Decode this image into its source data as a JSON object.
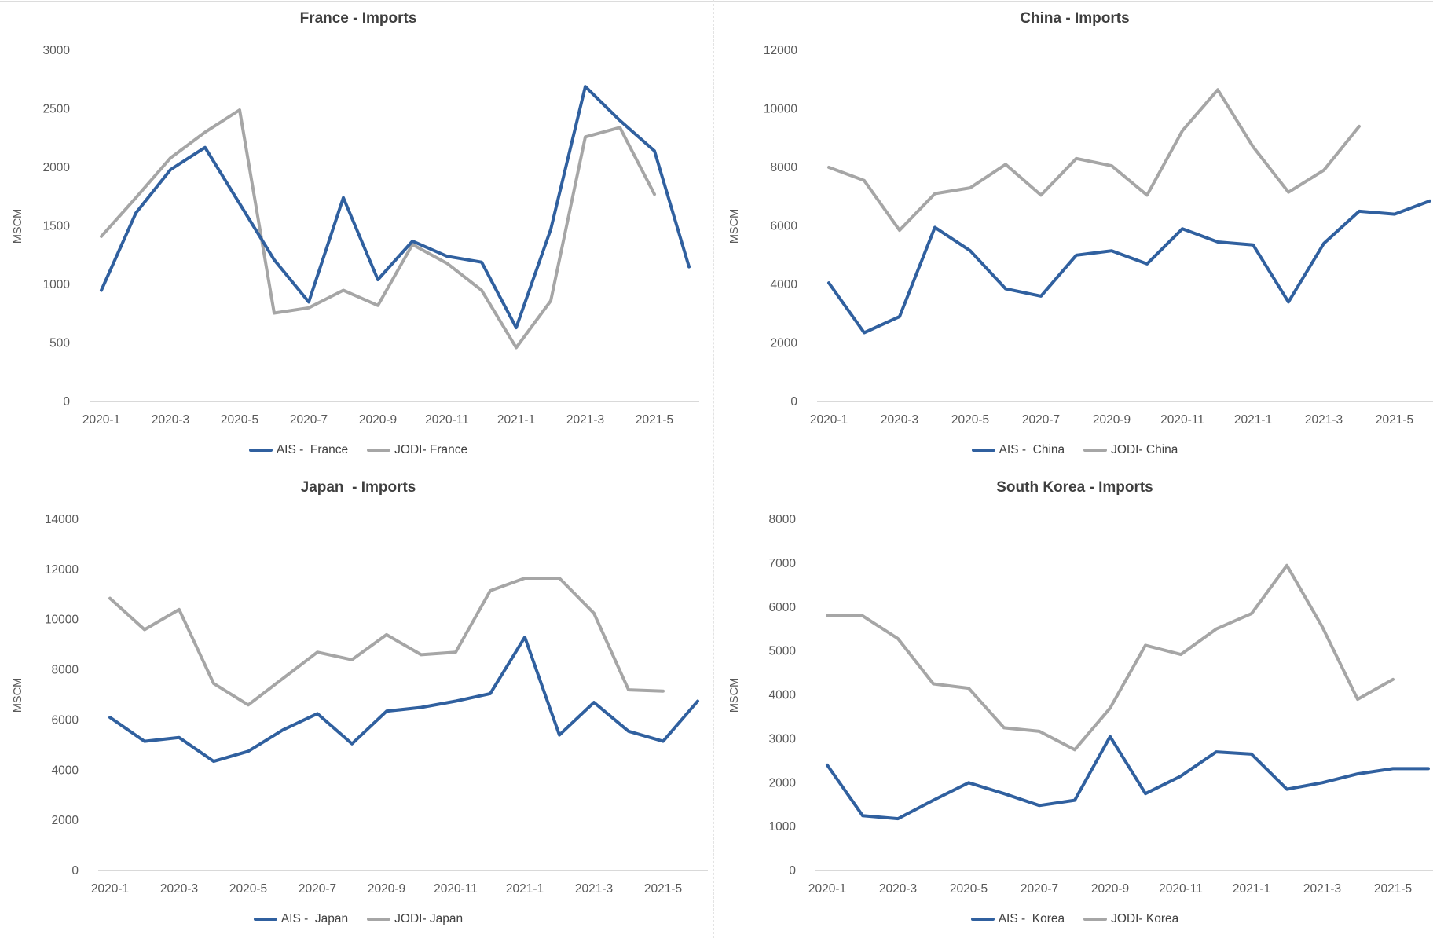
{
  "page": {
    "background": "#FFFFFF"
  },
  "style": {
    "ais_color": "#30609F",
    "jodi_color": "#A6A6A6",
    "axis_color": "#D9D9D9",
    "tick_color": "#595959",
    "title_color": "#3F3F3F",
    "line_width": 4
  },
  "months": [
    "2020-1",
    "2020-2",
    "2020-3",
    "2020-4",
    "2020-5",
    "2020-6",
    "2020-7",
    "2020-8",
    "2020-9",
    "2020-10",
    "2020-11",
    "2020-12",
    "2021-1",
    "2021-2",
    "2021-3",
    "2021-4",
    "2021-5",
    "2021-6"
  ],
  "chart_data": [
    {
      "id": "france",
      "type": "line",
      "title": "France - Imports",
      "ylabel": "MSCM",
      "ylim": [
        0,
        3000
      ],
      "yticks": [
        0,
        500,
        1000,
        1500,
        2000,
        2500,
        3000
      ],
      "xticks_shown": [
        "2020-1",
        "2020-3",
        "2020-5",
        "2020-7",
        "2020-9",
        "2020-11",
        "2021-1",
        "2021-3",
        "2021-5"
      ],
      "grid": false,
      "legend_position": "bottom",
      "series": [
        {
          "name": "AIS -  France",
          "color_key": "ais_color",
          "values": [
            950,
            1610,
            1980,
            2170,
            1690,
            1210,
            850,
            1740,
            1040,
            1370,
            1240,
            1190,
            630,
            1470,
            2690,
            2400,
            2140,
            1150
          ]
        },
        {
          "name": "JODI- France",
          "color_key": "jodi_color",
          "values": [
            1410,
            1740,
            2080,
            2300,
            2490,
            755,
            800,
            950,
            820,
            1340,
            1180,
            950,
            460,
            860,
            2260,
            2340,
            1770
          ]
        }
      ]
    },
    {
      "id": "china",
      "type": "line",
      "title": "China - Imports",
      "ylabel": "MSCM",
      "ylim": [
        0,
        12000
      ],
      "yticks": [
        0,
        2000,
        4000,
        6000,
        8000,
        10000,
        12000
      ],
      "xticks_shown": [
        "2020-1",
        "2020-3",
        "2020-5",
        "2020-7",
        "2020-9",
        "2020-11",
        "2021-1",
        "2021-3",
        "2021-5"
      ],
      "grid": false,
      "legend_position": "bottom",
      "series": [
        {
          "name": "AIS -  China",
          "color_key": "ais_color",
          "values": [
            4050,
            2350,
            2900,
            5950,
            5150,
            3850,
            3600,
            5000,
            5150,
            4700,
            5900,
            5450,
            5350,
            3400,
            5400,
            6500,
            6400,
            6850
          ]
        },
        {
          "name": "JODI- China",
          "color_key": "jodi_color",
          "values": [
            8000,
            7550,
            5850,
            7100,
            7300,
            8100,
            7050,
            8300,
            8050,
            7050,
            9250,
            10650,
            8700,
            7150,
            7900,
            9400
          ]
        }
      ]
    },
    {
      "id": "japan",
      "type": "line",
      "title": "Japan  - Imports",
      "ylabel": "MSCM",
      "ylim": [
        0,
        14000
      ],
      "yticks": [
        0,
        2000,
        4000,
        6000,
        8000,
        10000,
        12000,
        14000
      ],
      "xticks_shown": [
        "2020-1",
        "2020-3",
        "2020-5",
        "2020-7",
        "2020-9",
        "2020-11",
        "2021-1",
        "2021-3",
        "2021-5"
      ],
      "grid": false,
      "legend_position": "bottom",
      "series": [
        {
          "name": "AIS -  Japan",
          "color_key": "ais_color",
          "values": [
            6100,
            5150,
            5300,
            4350,
            4750,
            5600,
            6250,
            5050,
            6350,
            6500,
            6750,
            7050,
            9300,
            5400,
            6700,
            5550,
            5150,
            6750
          ]
        },
        {
          "name": "JODI- Japan",
          "color_key": "jodi_color",
          "values": [
            10850,
            9600,
            10400,
            7450,
            6600,
            7650,
            8700,
            8400,
            9400,
            8600,
            8700,
            11150,
            11650,
            11650,
            10250,
            7200,
            7150
          ]
        }
      ]
    },
    {
      "id": "south-korea",
      "type": "line",
      "title": "South Korea - Imports",
      "ylabel": "MSCM",
      "ylim": [
        0,
        8000
      ],
      "yticks": [
        0,
        1000,
        2000,
        3000,
        4000,
        5000,
        6000,
        7000,
        8000
      ],
      "xticks_shown": [
        "2020-1",
        "2020-3",
        "2020-5",
        "2020-7",
        "2020-9",
        "2020-11",
        "2021-1",
        "2021-3",
        "2021-5"
      ],
      "grid": false,
      "legend_position": "bottom",
      "series": [
        {
          "name": "AIS -  Korea",
          "color_key": "ais_color",
          "values": [
            2400,
            1250,
            1180,
            1600,
            2000,
            1750,
            1480,
            1600,
            3050,
            1750,
            2150,
            2700,
            2650,
            1850,
            2000,
            2200,
            2320,
            2320
          ]
        },
        {
          "name": "JODI- Korea",
          "color_key": "jodi_color",
          "values": [
            5800,
            5800,
            5280,
            4250,
            4150,
            3250,
            3170,
            2750,
            3700,
            5130,
            4920,
            5500,
            5850,
            6950,
            5550,
            3900,
            4350
          ]
        }
      ]
    }
  ]
}
